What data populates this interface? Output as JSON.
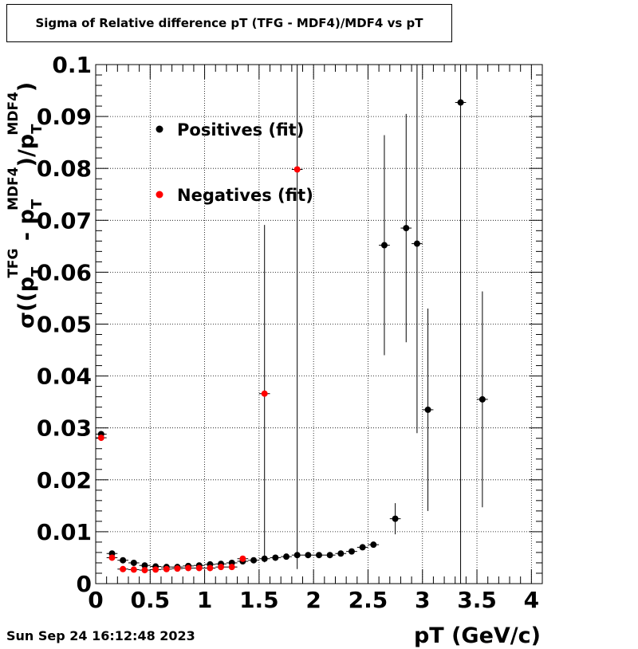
{
  "title": "Sigma of Relative difference pT (TFG - MDF4)/MDF4 vs pT",
  "timestamp": "Sun Sep 24 16:12:48 2023",
  "chart_data": {
    "type": "scatter",
    "title": "Sigma of Relative difference pT (TFG - MDF4)/MDF4 vs pT",
    "xlabel": "pT (GeV/c)",
    "ylabel": {
      "base": "σ((p",
      "sub1": "T",
      "sup1": "TFG",
      "mid": " - p",
      "sub2": "T",
      "sup2": "MDF4",
      "mid2": ")/p",
      "sub3": "T",
      "sup3": "MDF4",
      "end": ")"
    },
    "xlim": [
      0,
      4.1
    ],
    "ylim": [
      0,
      0.1
    ],
    "xticks": [
      0,
      0.5,
      1,
      1.5,
      2,
      2.5,
      3,
      3.5,
      4
    ],
    "xtick_labels": [
      "0",
      "0.5",
      "1",
      "1.5",
      "2",
      "2.5",
      "3",
      "3.5",
      "4"
    ],
    "yticks": [
      0,
      0.01,
      0.02,
      0.03,
      0.04,
      0.05,
      0.06,
      0.07,
      0.08,
      0.09,
      0.1
    ],
    "ytick_labels": [
      "0",
      "0.01",
      "0.02",
      "0.03",
      "0.04",
      "0.05",
      "0.06",
      "0.07",
      "0.08",
      "0.09",
      "0.1"
    ],
    "grid": true,
    "legend_position": "top-left",
    "series": [
      {
        "name": "Positives (fit)",
        "color": "#000000",
        "x": [
          0.05,
          0.15,
          0.25,
          0.35,
          0.45,
          0.55,
          0.65,
          0.75,
          0.85,
          0.95,
          1.05,
          1.15,
          1.25,
          1.35,
          1.45,
          1.55,
          1.65,
          1.75,
          1.85,
          1.95,
          2.05,
          2.15,
          2.25,
          2.35,
          2.45,
          2.55,
          2.65,
          2.75,
          2.85,
          2.95,
          3.05,
          3.35,
          3.55
        ],
        "y": [
          0.0288,
          0.0058,
          0.0045,
          0.004,
          0.0035,
          0.0033,
          0.0032,
          0.0032,
          0.0034,
          0.0035,
          0.0037,
          0.0038,
          0.004,
          0.0043,
          0.0045,
          0.0048,
          0.005,
          0.0052,
          0.0055,
          0.0055,
          0.0055,
          0.0055,
          0.0058,
          0.0062,
          0.007,
          0.0075,
          0.0652,
          0.0125,
          0.0685,
          0.0655,
          0.0335,
          0.0927,
          0.0355
        ],
        "yerr": [
          0.0004,
          0.0003,
          0.0002,
          0.0002,
          0.0002,
          0.0001,
          0.0001,
          0.0001,
          0.0001,
          0.0001,
          0.0001,
          0.0001,
          0.0001,
          0.0002,
          0.0002,
          0.0002,
          0.0002,
          0.0002,
          0.0002,
          0.0002,
          0.0002,
          0.0002,
          0.0003,
          0.0003,
          0.0004,
          0.0005,
          0.0212,
          0.003,
          0.022,
          0.0365,
          0.0195,
          0.1,
          0.0208
        ]
      },
      {
        "name": "Negatives (fit)",
        "color": "#ff0000",
        "x": [
          0.05,
          0.15,
          0.25,
          0.35,
          0.45,
          0.55,
          0.65,
          0.75,
          0.85,
          0.95,
          1.05,
          1.15,
          1.25,
          1.35,
          1.55,
          1.85
        ],
        "y": [
          0.0281,
          0.005,
          0.0028,
          0.0027,
          0.0026,
          0.0027,
          0.0028,
          0.0029,
          0.003,
          0.003,
          0.003,
          0.0032,
          0.0032,
          0.0048,
          0.0366,
          0.0798
        ],
        "yerr": [
          0.0004,
          0.0003,
          0.0002,
          0.0002,
          0.0002,
          0.0001,
          0.0001,
          0.0001,
          0.0001,
          0.0001,
          0.0001,
          0.0001,
          0.0002,
          0.0004,
          0.0325,
          0.077
        ]
      }
    ]
  }
}
